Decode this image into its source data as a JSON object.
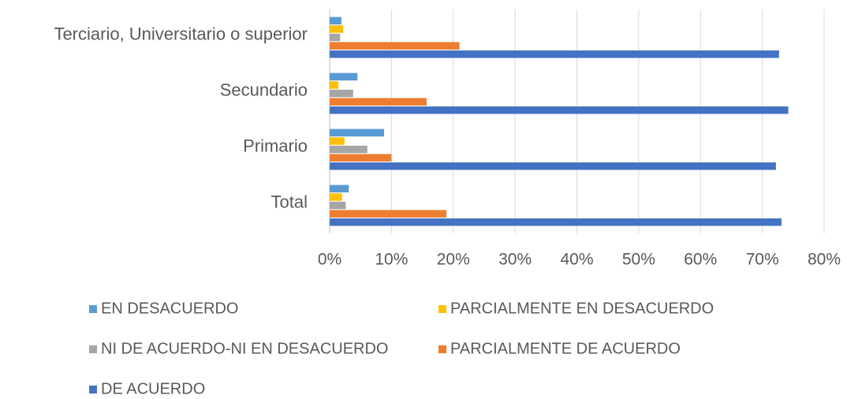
{
  "chart_data": {
    "type": "hbar",
    "categories": [
      "Terciario, Universitario o superior",
      "Secundario",
      "Primario",
      "Total"
    ],
    "series": [
      {
        "name": "EN DESACUERDO",
        "color": "#5b9bd5",
        "values": [
          1.9,
          4.5,
          8.8,
          3.1
        ]
      },
      {
        "name": "PARCIALMENTE EN DESACUERDO",
        "color": "#ffc000",
        "values": [
          2.2,
          1.4,
          2.4,
          2.0
        ]
      },
      {
        "name": "NI DE ACUERDO-NI EN DESACUERDO",
        "color": "#a5a5a5",
        "values": [
          1.7,
          3.8,
          6.1,
          2.6
        ]
      },
      {
        "name": "PARCIALMENTE DE ACUERDO",
        "color": "#ed7d31",
        "values": [
          21.0,
          15.7,
          10.0,
          18.9
        ]
      },
      {
        "name": "DE ACUERDO",
        "color": "#4472c4",
        "values": [
          72.7,
          74.2,
          72.2,
          73.1
        ]
      }
    ],
    "xlim": [
      0,
      80
    ],
    "xticks": [
      {
        "value": 0,
        "label": "0%"
      },
      {
        "value": 10,
        "label": "10%"
      },
      {
        "value": 20,
        "label": "20%"
      },
      {
        "value": 30,
        "label": "30%"
      },
      {
        "value": 40,
        "label": "40%"
      },
      {
        "value": 50,
        "label": "50%"
      },
      {
        "value": 60,
        "label": "60%"
      },
      {
        "value": 70,
        "label": "70%"
      },
      {
        "value": 80,
        "label": "80%"
      }
    ],
    "grid": true,
    "legend": "bottom"
  }
}
